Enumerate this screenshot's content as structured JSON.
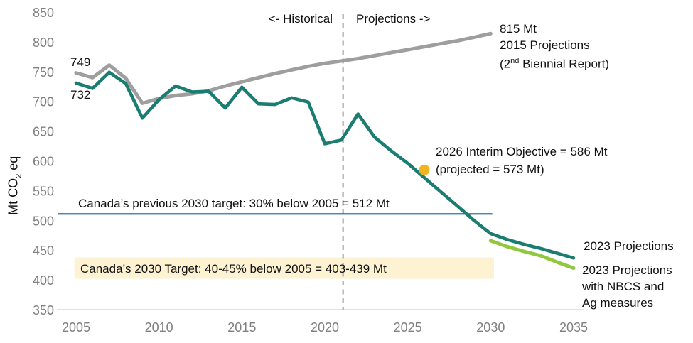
{
  "chart_data": {
    "type": "line",
    "title": "",
    "ylabel": "Mt CO2 eq",
    "ylabel_parts": {
      "pre": "Mt CO",
      "sub": "2",
      "post": " eq"
    },
    "ylim": [
      350,
      850
    ],
    "xlim": [
      2004,
      2036
    ],
    "grid": false,
    "legend_position": "inline-annotations",
    "y_ticks": [
      850,
      800,
      750,
      700,
      650,
      600,
      550,
      500,
      450,
      400,
      350
    ],
    "x_ticks": [
      2005,
      2010,
      2015,
      2020,
      2025,
      2030,
      2035
    ],
    "series": [
      {
        "key": "projections-2015",
        "name": "2015 Projections (2nd Biennial Report)",
        "color": "#9e9e9e",
        "width": 5,
        "x": [
          2005,
          2006,
          2007,
          2008,
          2009,
          2010,
          2011,
          2012,
          2013,
          2014,
          2015,
          2016,
          2017,
          2018,
          2019,
          2020,
          2021,
          2022,
          2023,
          2024,
          2025,
          2026,
          2027,
          2028,
          2029,
          2030
        ],
        "values": [
          749,
          741,
          762,
          740,
          698,
          706,
          711,
          714,
          719,
          727,
          734,
          741,
          748,
          754,
          760,
          765,
          769,
          773,
          778,
          783,
          788,
          793,
          798,
          803,
          809,
          815
        ]
      },
      {
        "key": "historical-and-2023-projections",
        "name": "Historical emissions + 2023 Projections",
        "color": "#1b7c72",
        "width": 4.6,
        "x": [
          2005,
          2006,
          2007,
          2008,
          2009,
          2010,
          2011,
          2012,
          2013,
          2014,
          2015,
          2016,
          2017,
          2018,
          2019,
          2020,
          2021,
          2022,
          2023,
          2024,
          2025,
          2026,
          2027,
          2028,
          2029,
          2030,
          2031,
          2032,
          2033,
          2034,
          2035
        ],
        "values": [
          732,
          723,
          750,
          731,
          673,
          704,
          727,
          717,
          718,
          690,
          725,
          697,
          696,
          707,
          700,
          630,
          636,
          680,
          641,
          618,
          597,
          573,
          549,
          525,
          501,
          479,
          469,
          461,
          454,
          446,
          438
        ]
      },
      {
        "key": "projections-2023-nbcs-ag",
        "name": "2023 Projections with NBCS and Ag measures",
        "color": "#92c83e",
        "width": 5,
        "x": [
          2030,
          2031,
          2032,
          2033,
          2034,
          2035
        ],
        "values": [
          467,
          457,
          449,
          442,
          431,
          421
        ]
      }
    ],
    "divider": {
      "x": 2021.1,
      "left_label": "<- Historical",
      "right_label": "Projections ->",
      "color": "#b3b3b3"
    },
    "reference_line": {
      "label": "Canada’s previous 2030 target: 30% below 2005 = 512 Mt",
      "value": 512,
      "x_start": 2003.9,
      "x_end": 2030.1,
      "color": "#2e74a8"
    },
    "target_band": {
      "label": "Canada’s 2030 Target: 40-45% below 2005 = 403-439 Mt",
      "value_top": 439,
      "value_bottom": 403,
      "x_start": 2004.9,
      "x_end": 2030.2,
      "color": "#fdf2d2"
    },
    "point_marker": {
      "x": 2026,
      "value": 586,
      "color": "#f0b323",
      "meaning": "2026 Interim Objective"
    },
    "annotations": {
      "start_gray": "749",
      "start_teal": "732",
      "biennial": {
        "line1": "815 Mt",
        "line2": "2015 Projections",
        "line3_pre": "(2",
        "line3_sup": "nd",
        "line3_post": " Biennial Report)"
      },
      "interim": {
        "line1": "2026 Interim Objective = 586 Mt",
        "line2": "(projected = 573 Mt)"
      },
      "projections_2023": "2023 Projections",
      "nbcs": {
        "line1": "2023 Projections",
        "line2": "with NBCS and",
        "line3": "Ag measures"
      }
    },
    "axis_color": "#d9d9d9",
    "tick_color": "#808080"
  }
}
